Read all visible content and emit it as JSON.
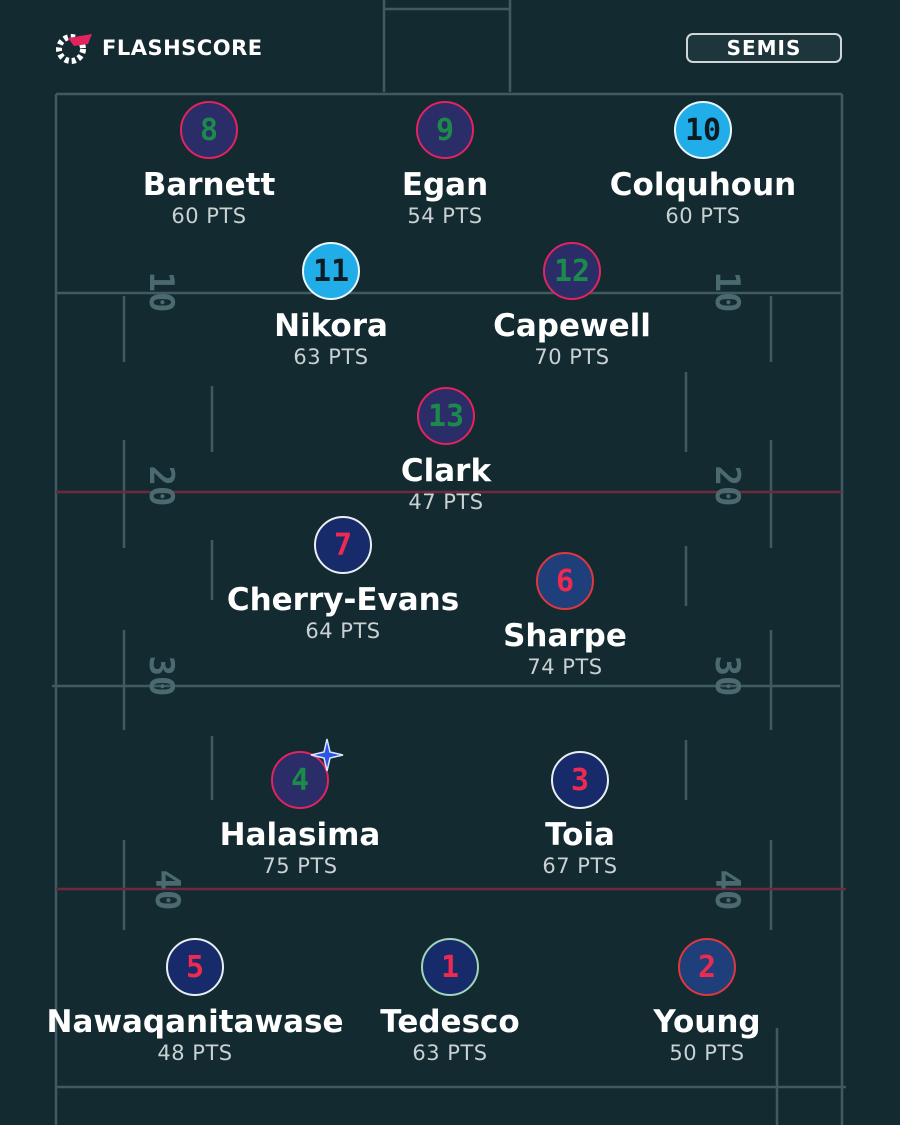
{
  "brand": {
    "name": "FLASHSCORE",
    "accent": "#e2245e"
  },
  "round_badge": "SEMIS",
  "field": {
    "yard_markers": [
      "10",
      "20",
      "30",
      "40"
    ]
  },
  "colors": {
    "background": "#132a30",
    "line": "#3f5a60",
    "redline": "#6d2a3c"
  },
  "players": [
    {
      "number": "8",
      "name": "Barnett",
      "points": "60 PTS",
      "style": "purple"
    },
    {
      "number": "9",
      "name": "Egan",
      "points": "54 PTS",
      "style": "purple"
    },
    {
      "number": "10",
      "name": "Colquhoun",
      "points": "60 PTS",
      "style": "cyan"
    },
    {
      "number": "11",
      "name": "Nikora",
      "points": "63 PTS",
      "style": "cyan"
    },
    {
      "number": "12",
      "name": "Capewell",
      "points": "70 PTS",
      "style": "purple"
    },
    {
      "number": "13",
      "name": "Clark",
      "points": "47 PTS",
      "style": "purple"
    },
    {
      "number": "7",
      "name": "Cherry-Evans",
      "points": "64 PTS",
      "style": "navy"
    },
    {
      "number": "6",
      "name": "Sharpe",
      "points": "74 PTS",
      "style": "red"
    },
    {
      "number": "4",
      "name": "Halasima",
      "points": "75 PTS",
      "style": "purple",
      "star_icon": "star-icon"
    },
    {
      "number": "3",
      "name": "Toia",
      "points": "67 PTS",
      "style": "navy"
    },
    {
      "number": "5",
      "name": "Nawaqanitawase",
      "points": "48 PTS",
      "style": "navy"
    },
    {
      "number": "1",
      "name": "Tedesco",
      "points": "63 PTS",
      "style": "navy-green"
    },
    {
      "number": "2",
      "name": "Young",
      "points": "50 PTS",
      "style": "red"
    }
  ]
}
